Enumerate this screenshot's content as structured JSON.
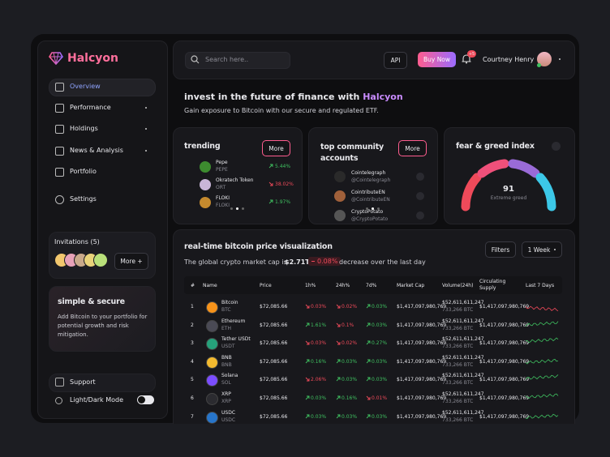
{
  "brand": "Halcyon",
  "nav": [
    "Overview",
    "Performance",
    "Holdings",
    "News & Analysis",
    "Portfolio",
    "Settings"
  ],
  "invitations": {
    "title": "Invitations (5)",
    "button": "More +"
  },
  "promo": {
    "title": "simple & secure",
    "text": "Add Bitcoin to your portfolio for potential growth and risk mitigation."
  },
  "footer_nav": [
    "Support",
    "Light/Dark Mode"
  ],
  "topbar": {
    "search": "Search here..",
    "api": "API",
    "buy": "Buy Now",
    "badge": "+5",
    "user": "Courtney Henry"
  },
  "hero": {
    "title": "invest in the future of finance with",
    "brand": "Halcyon",
    "subtitle": "Gain exposure to Bitcoin with our secure and regulated ETF."
  },
  "trending": {
    "title": "trending",
    "button": "More",
    "items": [
      {
        "name": "Pepe",
        "symbol": "PEPE",
        "change": "5.44%",
        "trend": "up",
        "color": "#3d8b2f"
      },
      {
        "name": "Okratech Token",
        "symbol": "ORT",
        "change": "38.02%",
        "trend": "down",
        "color": "#c9b6d8"
      },
      {
        "name": "FLOKI",
        "symbol": "FLOKI",
        "change": "1.97%",
        "trend": "up",
        "color": "#c58a2e"
      }
    ]
  },
  "community": {
    "title": "top community accounts",
    "button": "More",
    "items": [
      {
        "name": "Cointelegraph",
        "handle": "@Cointelegraph",
        "color": "#2a2a2a"
      },
      {
        "name": "CointributeEN",
        "handle": "@CointributeEN",
        "color": "#a0603a"
      },
      {
        "name": "CryptoPotato",
        "handle": "@CryptoPotato",
        "color": "#555"
      }
    ]
  },
  "fear_greed": {
    "title": "fear & greed index",
    "value": 91,
    "label": "Extreme greed"
  },
  "price": {
    "title": "real-time bitcoin price visualization",
    "filters": "Filters",
    "period": "1 Week",
    "market_text": "The global crypto market cap is",
    "market_cap": "$2.71T",
    "change": "0.08%",
    "change_text": "decrease over the last day"
  },
  "table": {
    "columns": [
      "#",
      "Name",
      "Price",
      "1h%",
      "24h%",
      "7d%",
      "Market Cap",
      "Volume(24h)",
      "Circulating Supply",
      "Last 7 Days"
    ],
    "rows": [
      {
        "rank": "1",
        "name": "Bitcoin",
        "symbol": "BTC",
        "price": "$72,085.66",
        "h1": "0.03%",
        "h1_trend": "down",
        "h24": "0.02%",
        "h24_trend": "down",
        "d7": "0.03%",
        "d7_trend": "up",
        "market_cap": "$1,417,097,980,769",
        "volume": "$52,611,611,247",
        "volume_btc": "733,266 BTC",
        "supply": "$1,417,097,980,769",
        "icon_color": "#f7931a",
        "spark": "down"
      },
      {
        "rank": "2",
        "name": "Ethereum",
        "symbol": "ETH",
        "price": "$72,085.66",
        "h1": "1.61%",
        "h1_trend": "up",
        "h24": "0.1%",
        "h24_trend": "down",
        "d7": "0.03%",
        "d7_trend": "up",
        "market_cap": "$1,417,097,980,769",
        "volume": "$52,611,611,247",
        "volume_btc": "733,266 BTC",
        "supply": "$1,417,097,980,769",
        "icon_color": "#4a4a55",
        "spark": "up"
      },
      {
        "rank": "3",
        "name": "Tether USDt",
        "symbol": "USDT",
        "price": "$72,085.66",
        "h1": "0.03%",
        "h1_trend": "down",
        "h24": "0.02%",
        "h24_trend": "down",
        "d7": "0.27%",
        "d7_trend": "up",
        "market_cap": "$1,417,097,980,769",
        "volume": "$52,611,611,247",
        "volume_btc": "733,266 BTC",
        "supply": "$1,417,097,980,769",
        "icon_color": "#26a17b",
        "spark": "up"
      },
      {
        "rank": "4",
        "name": "BNB",
        "symbol": "BNB",
        "price": "$72,085.66",
        "h1": "0.16%",
        "h1_trend": "up",
        "h24": "0.03%",
        "h24_trend": "up",
        "d7": "0.03%",
        "d7_trend": "up",
        "market_cap": "$1,417,097,980,769",
        "volume": "$52,611,611,247",
        "volume_btc": "733,266 BTC",
        "supply": "$1,417,097,980,769",
        "icon_color": "#f3ba2f",
        "spark": "up"
      },
      {
        "rank": "5",
        "name": "Solana",
        "symbol": "SOL",
        "price": "$72,085.66",
        "h1": "2.06%",
        "h1_trend": "down",
        "h24": "0.03%",
        "h24_trend": "up",
        "d7": "0.03%",
        "d7_trend": "up",
        "market_cap": "$1,417,097,980,769",
        "volume": "$52,611,611,247",
        "volume_btc": "733,266 BTC",
        "supply": "$1,417,097,980,769",
        "icon_color": "#7b4dff",
        "spark": "up"
      },
      {
        "rank": "6",
        "name": "XRP",
        "symbol": "XRP",
        "price": "$72,085.66",
        "h1": "0.03%",
        "h1_trend": "up",
        "h24": "0.16%",
        "h24_trend": "up",
        "d7": "0.01%",
        "d7_trend": "down",
        "market_cap": "$1,417,097,980,769",
        "volume": "$52,611,611,247",
        "volume_btc": "733,266 BTC",
        "supply": "$1,417,097,980,769",
        "icon_color": "#2b2b30",
        "spark": "up"
      },
      {
        "rank": "7",
        "name": "USDC",
        "symbol": "USDC",
        "price": "$72,085.66",
        "h1": "0.03%",
        "h1_trend": "up",
        "h24": "0.03%",
        "h24_trend": "up",
        "d7": "0.03%",
        "d7_trend": "up",
        "market_cap": "$1,417,097,980,769",
        "volume": "$52,611,611,247",
        "volume_btc": "733,266 BTC",
        "supply": "$1,417,097,980,769",
        "icon_color": "#2775ca",
        "spark": "up"
      }
    ]
  }
}
